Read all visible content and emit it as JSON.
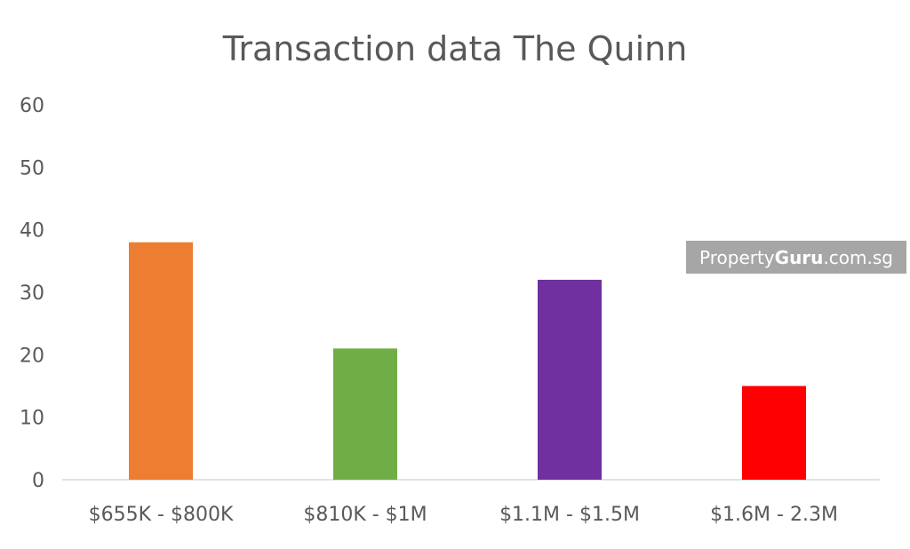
{
  "chart_data": {
    "type": "bar",
    "title": "Transaction data The Quinn",
    "xlabel": "",
    "ylabel": "",
    "categories": [
      "$655K - $800K",
      "$810K - $1M",
      "$1.1M - $1.5M",
      "$1.6M - 2.3M"
    ],
    "values": [
      38,
      21,
      32,
      15
    ],
    "colors": [
      "#ed7d31",
      "#70ad47",
      "#7030a0",
      "#ff0000"
    ],
    "ylim": [
      0,
      60
    ],
    "yticks": [
      0,
      10,
      20,
      30,
      40,
      50,
      60
    ],
    "grid": false,
    "legend": "none"
  },
  "watermark": {
    "brand_prefix": "Property",
    "brand_bold": "Guru",
    "brand_suffix": ".com.sg",
    "background_color": "#a6a6a6"
  }
}
